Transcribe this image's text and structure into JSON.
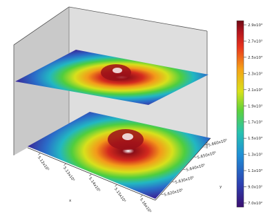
{
  "chart_data": {
    "type": "surface3d",
    "description_of_surfaces": [
      "upper",
      "lower"
    ],
    "surfaces": [
      {
        "peak_value": 2900.0,
        "base_value": 700.0,
        "peak_location_x_frac": 0.55,
        "peak_location_y_frac": 0.5
      },
      {
        "peak_value": 2900.0,
        "base_value": 700.0,
        "peak_location_x_frac": 0.55,
        "peak_location_y_frac": 0.5
      }
    ],
    "x_axis": {
      "label": "x",
      "ticks": [
        "5.12x10⁵",
        "5.13x10⁵",
        "5.14x10⁵",
        "5.15x10⁵",
        "5.16x10⁵"
      ]
    },
    "y_axis": {
      "label": "y",
      "ticks": [
        "5.660x10⁶",
        "5.650x10⁶",
        "5.640x10⁶",
        "5.630x10⁶",
        "5.620x10⁶"
      ]
    },
    "colorbar": {
      "colormap": "rainbow",
      "ticks": [
        "2.9x10³",
        "2.7x10³",
        "2.5x10³",
        "2.3x10³",
        "2.1x10³",
        "1.9x10³",
        "1.7x10³",
        "1.5x10³",
        "1.3x10³",
        "1.1x10³",
        "9.0x10²",
        "7.0x10²"
      ],
      "range": [
        700,
        2900
      ]
    },
    "colors": [
      "#3b0f70",
      "#2d3fb0",
      "#1f8fd6",
      "#27c2b0",
      "#5fd23a",
      "#d8e11a",
      "#f6a318",
      "#e8341e",
      "#b3151e",
      "#6e0a14"
    ]
  }
}
